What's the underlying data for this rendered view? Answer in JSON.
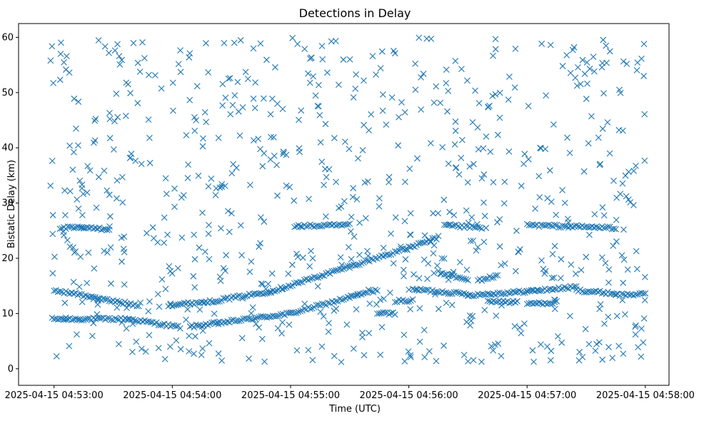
{
  "chart_data": {
    "type": "scatter",
    "title": "Detections in Delay",
    "xlabel": "Time (UTC)",
    "ylabel": "Bistatic Delay (km)",
    "marker": "x",
    "color": "#1f77b4",
    "grid": false,
    "x_type": "datetime",
    "xlim": [
      "2025-04-15 04:52:42",
      "2025-04-15 04:58:12"
    ],
    "ylim": [
      -3,
      62.5
    ],
    "xticks": [
      "2025-04-15 04:53:00",
      "2025-04-15 04:54:00",
      "2025-04-15 04:55:00",
      "2025-04-15 04:56:00",
      "2025-04-15 04:57:00",
      "2025-04-15 04:58:00"
    ],
    "yticks": [
      0,
      10,
      20,
      30,
      40,
      50,
      60
    ],
    "tracks": [
      {
        "start": "2025-04-15 04:52:59",
        "end": "2025-04-15 04:53:07",
        "delay_start": 9,
        "delay_end": 9
      },
      {
        "start": "2025-04-15 04:53:05",
        "end": "2025-04-15 04:53:38",
        "delay_start": 9,
        "delay_end": 9
      },
      {
        "start": "2025-04-15 04:53:38",
        "end": "2025-04-15 04:54:04",
        "delay_start": 9,
        "delay_end": 7.5
      },
      {
        "start": "2025-04-15 04:54:09",
        "end": "2025-04-15 04:55:00",
        "delay_start": 7.6,
        "delay_end": 10
      },
      {
        "start": "2025-04-15 04:55:00",
        "end": "2025-04-15 04:55:44",
        "delay_start": 10,
        "delay_end": 14.3
      },
      {
        "start": "2025-04-15 04:55:44",
        "end": "2025-04-15 04:55:53",
        "delay_start": 10,
        "delay_end": 10
      },
      {
        "start": "2025-04-15 04:55:53",
        "end": "2025-04-15 04:56:02",
        "delay_start": 12.3,
        "delay_end": 12.3
      },
      {
        "start": "2025-04-15 04:56:02",
        "end": "2025-04-15 04:56:30",
        "delay_start": 14.4,
        "delay_end": 13.5
      },
      {
        "start": "2025-04-15 04:56:30",
        "end": "2025-04-15 04:57:00",
        "delay_start": 13.3,
        "delay_end": 14
      },
      {
        "start": "2025-04-15 04:57:00",
        "end": "2025-04-15 04:57:25",
        "delay_start": 14,
        "delay_end": 14.8
      },
      {
        "start": "2025-04-15 04:57:25",
        "end": "2025-04-15 04:57:45",
        "delay_start": 14.2,
        "delay_end": 13.6
      },
      {
        "start": "2025-04-15 04:57:45",
        "end": "2025-04-15 04:58:00",
        "delay_start": 13.4,
        "delay_end": 13.5
      },
      {
        "start": "2025-04-15 04:53:00",
        "end": "2025-04-15 04:53:20",
        "delay_start": 14.2,
        "delay_end": 13
      },
      {
        "start": "2025-04-15 04:53:20",
        "end": "2025-04-15 04:53:43",
        "delay_start": 12.8,
        "delay_end": 11.5
      },
      {
        "start": "2025-04-15 04:53:58",
        "end": "2025-04-15 04:54:20",
        "delay_start": 11.5,
        "delay_end": 12.2
      },
      {
        "start": "2025-04-15 04:54:20",
        "end": "2025-04-15 04:54:50",
        "delay_start": 12.2,
        "delay_end": 14
      },
      {
        "start": "2025-04-15 04:54:50",
        "end": "2025-04-15 04:55:30",
        "delay_start": 14,
        "delay_end": 18.5
      },
      {
        "start": "2025-04-15 04:55:30",
        "end": "2025-04-15 04:56:05",
        "delay_start": 18.5,
        "delay_end": 22.5
      },
      {
        "start": "2025-04-15 04:56:05",
        "end": "2025-04-15 04:56:15",
        "delay_start": 22.5,
        "delay_end": 23.8
      },
      {
        "start": "2025-04-15 04:56:15",
        "end": "2025-04-15 04:56:30",
        "delay_start": 17.5,
        "delay_end": 16
      },
      {
        "start": "2025-04-15 04:56:35",
        "end": "2025-04-15 04:56:45",
        "delay_start": 16,
        "delay_end": 16.8
      },
      {
        "start": "2025-04-15 04:56:40",
        "end": "2025-04-15 04:56:55",
        "delay_start": 12.3,
        "delay_end": 12
      },
      {
        "start": "2025-04-15 04:57:00",
        "end": "2025-04-15 04:57:15",
        "delay_start": 11.8,
        "delay_end": 12
      },
      {
        "start": "2025-04-15 04:53:03",
        "end": "2025-04-15 04:53:15",
        "delay_start": 25.5,
        "delay_end": 25.5
      },
      {
        "start": "2025-04-15 04:53:14",
        "end": "2025-04-15 04:53:28",
        "delay_start": 25.5,
        "delay_end": 25.3
      },
      {
        "start": "2025-04-15 04:55:02",
        "end": "2025-04-15 04:55:30",
        "delay_start": 25.8,
        "delay_end": 26
      },
      {
        "start": "2025-04-15 04:56:18",
        "end": "2025-04-15 04:56:37",
        "delay_start": 26,
        "delay_end": 25.5
      },
      {
        "start": "2025-04-15 04:57:00",
        "end": "2025-04-15 04:57:45",
        "delay_start": 26,
        "delay_end": 25.5
      }
    ]
  }
}
